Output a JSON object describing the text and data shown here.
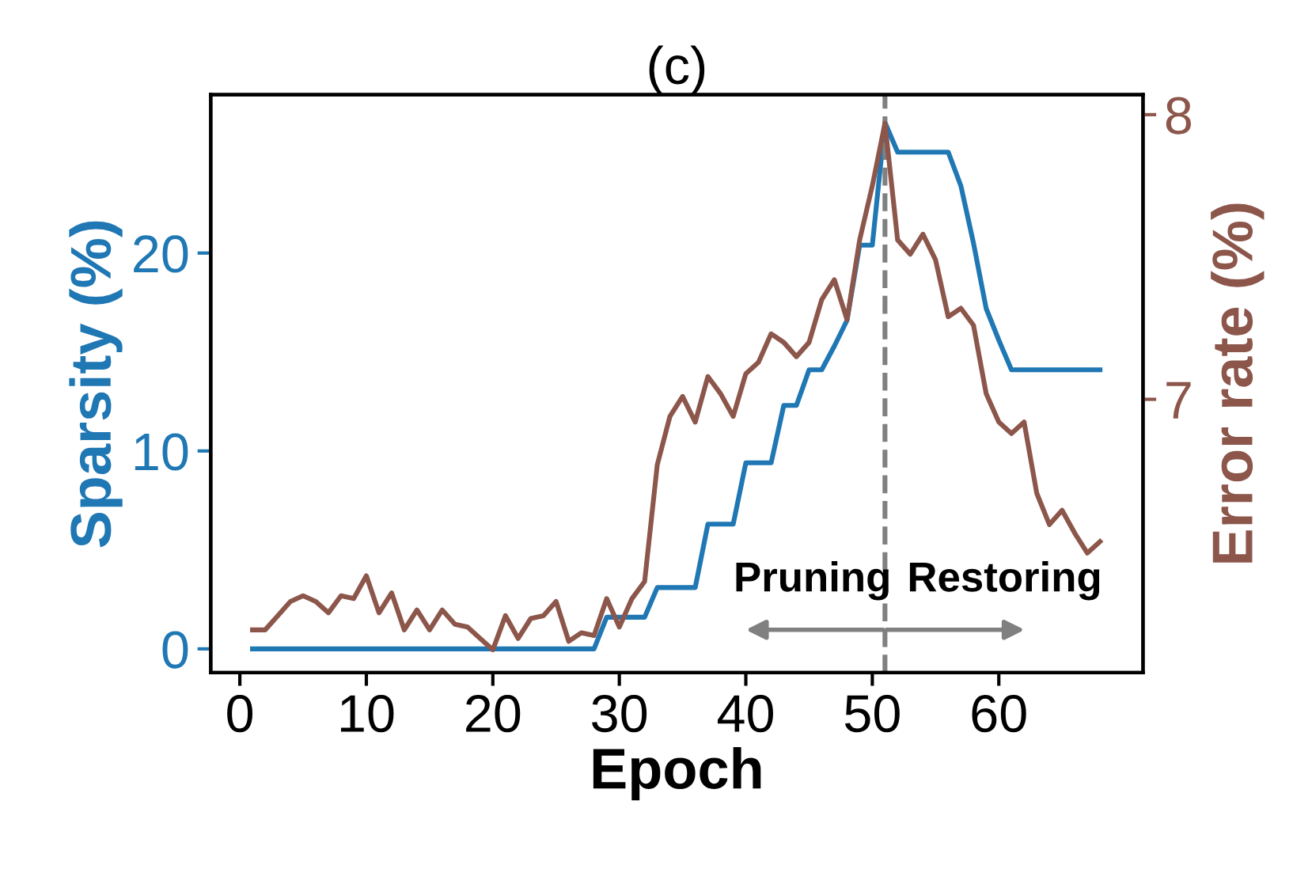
{
  "chart_data": {
    "type": "line",
    "title": "(c)",
    "xlabel": "Epoch",
    "ylabel": "Sparsity (%)",
    "y2label": "Error rate (%)",
    "x": [
      1,
      2,
      3,
      4,
      5,
      6,
      7,
      8,
      9,
      10,
      11,
      12,
      13,
      14,
      15,
      16,
      17,
      18,
      19,
      20,
      21,
      22,
      23,
      24,
      25,
      26,
      27,
      28,
      29,
      30,
      31,
      32,
      33,
      34,
      35,
      36,
      37,
      38,
      39,
      40,
      41,
      42,
      43,
      44,
      45,
      46,
      47,
      48,
      49,
      50,
      51,
      52,
      53,
      54,
      55,
      56,
      57,
      58,
      59,
      60,
      61,
      62,
      63,
      64,
      65,
      66,
      67,
      68
    ],
    "series": [
      {
        "color": "#1f77b4",
        "axis": "y",
        "values": [
          0,
          0,
          0,
          0,
          0,
          0,
          0,
          0,
          0,
          0,
          0,
          0,
          0,
          0,
          0,
          0,
          0,
          0,
          0,
          0,
          0,
          0,
          0,
          0,
          0,
          0,
          0,
          0,
          1.6,
          1.6,
          1.6,
          1.6,
          3.1,
          3.1,
          3.1,
          3.1,
          6.3,
          6.3,
          6.3,
          9.4,
          9.4,
          9.4,
          12.3,
          12.3,
          14.1,
          14.1,
          15.3,
          16.6,
          20.4,
          20.4,
          26.6,
          25.1,
          25.1,
          25.1,
          25.1,
          25.1,
          23.4,
          20.5,
          17.2,
          15.6,
          14.1,
          14.1,
          14.1,
          14.1,
          14.1,
          14.1,
          14.1,
          14.1
        ]
      },
      {
        "color": "#8c564b",
        "axis": "y2",
        "values": [
          6.19,
          6.19,
          6.24,
          6.29,
          6.31,
          6.29,
          6.25,
          6.31,
          6.3,
          6.38,
          6.25,
          6.32,
          6.19,
          6.26,
          6.19,
          6.26,
          6.21,
          6.2,
          6.16,
          6.12,
          6.24,
          6.16,
          6.23,
          6.24,
          6.29,
          6.15,
          6.18,
          6.17,
          6.3,
          6.2,
          6.3,
          6.36,
          6.77,
          6.94,
          7.01,
          6.92,
          7.08,
          7.02,
          6.94,
          7.09,
          7.13,
          7.23,
          7.2,
          7.15,
          7.2,
          7.35,
          7.42,
          7.28,
          7.56,
          7.75,
          7.97,
          7.56,
          7.51,
          7.58,
          7.49,
          7.29,
          7.32,
          7.26,
          7.02,
          6.92,
          6.88,
          6.92,
          6.67,
          6.56,
          6.61,
          6.53,
          6.46,
          6.5
        ]
      }
    ],
    "xlim": [
      -2.3,
      71.4
    ],
    "xticks": [
      0,
      10,
      20,
      30,
      40,
      50,
      60
    ],
    "ylim": [
      -1.2,
      28
    ],
    "yticks": [
      0,
      10,
      20
    ],
    "y2lim": [
      6.04,
      8.07
    ],
    "y2ticks": [
      7,
      8
    ],
    "ref_lines": [
      {
        "axis": "x",
        "value": 51,
        "color": "#808080",
        "line_style": "dashed"
      }
    ],
    "annotations": [
      "Pruning",
      "Restoring"
    ],
    "grid": false,
    "legend": false
  }
}
